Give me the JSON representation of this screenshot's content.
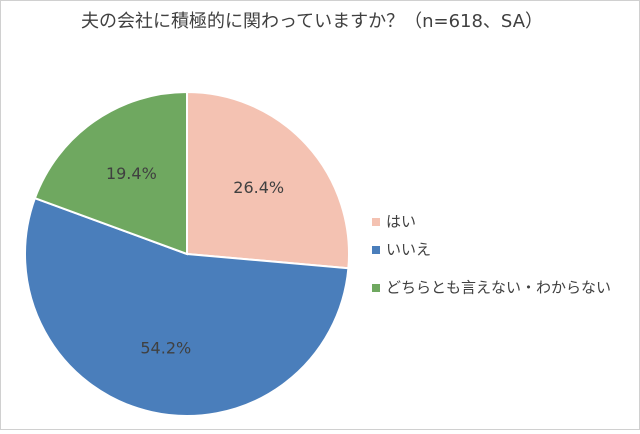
{
  "chart_data": {
    "type": "pie",
    "title": "夫の会社に積極的に関わっていますか？（n=618、SA）",
    "categories": [
      "はい",
      "いいえ",
      "どちらとも言えない・わからない"
    ],
    "values": [
      26.4,
      54.2,
      19.4
    ],
    "value_labels": [
      "26.4%",
      "54.2%",
      "19.4%"
    ],
    "colors": [
      "#f4c2b2",
      "#4a7ebb",
      "#6fa860"
    ],
    "legend": "right"
  }
}
